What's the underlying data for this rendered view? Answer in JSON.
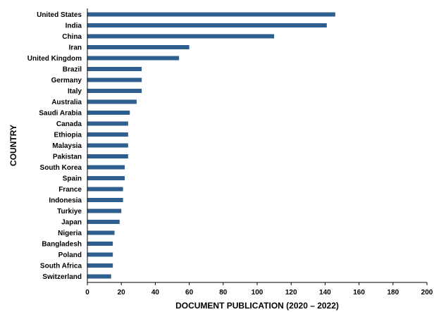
{
  "chart_data": {
    "type": "bar",
    "orientation": "horizontal",
    "xlabel": "DOCUMENT PUBLICATION (2020 – 2022)",
    "ylabel": "COUNTRY",
    "xlim": [
      0,
      200
    ],
    "x_ticks": [
      "0",
      "20",
      "40",
      "60",
      "80",
      "100",
      "120",
      "140",
      "160",
      "180",
      "200"
    ],
    "grid": false,
    "legend": "none",
    "bar_color": "#2e5f8f",
    "categories": [
      "United States",
      "India",
      "China",
      "Iran",
      "United Kingdom",
      "Brazil",
      "Germany",
      "Italy",
      "Australia",
      "Saudi Arabia",
      "Canada",
      "Ethiopia",
      "Malaysia",
      "Pakistan",
      "South Korea",
      "Spain",
      "France",
      "Indonesia",
      "Turkiye",
      "Japan",
      "Nigeria",
      "Bangladesh",
      "Poland",
      "South Africa",
      "Switzerland"
    ],
    "values": [
      146,
      141,
      110,
      60,
      54,
      32,
      32,
      32,
      29,
      25,
      24,
      24,
      24,
      24,
      22,
      22,
      21,
      21,
      20,
      19,
      16,
      15,
      15,
      15,
      14
    ]
  }
}
